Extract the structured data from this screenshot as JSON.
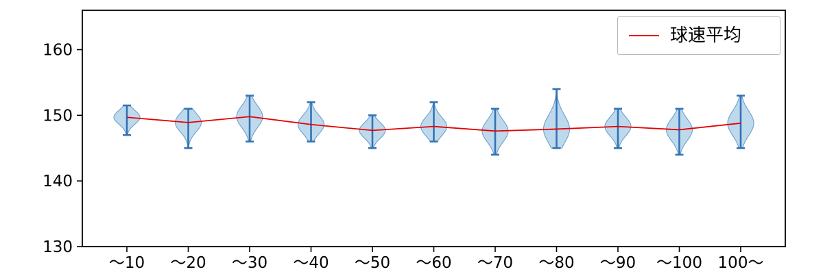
{
  "chart_data": {
    "type": "violin",
    "title": "",
    "xlabel": "",
    "ylabel": "",
    "categories": [
      "〜10",
      "〜20",
      "〜30",
      "〜40",
      "〜50",
      "〜60",
      "〜70",
      "〜80",
      "〜90",
      "〜100",
      "100〜"
    ],
    "violins": [
      {
        "category": "〜10",
        "min": 147.0,
        "max": 151.5,
        "mean": 149.7
      },
      {
        "category": "〜20",
        "min": 145.0,
        "max": 151.0,
        "mean": 148.9
      },
      {
        "category": "〜30",
        "min": 146.0,
        "max": 153.0,
        "mean": 149.8
      },
      {
        "category": "〜40",
        "min": 146.0,
        "max": 152.0,
        "mean": 148.6
      },
      {
        "category": "〜50",
        "min": 145.0,
        "max": 150.0,
        "mean": 147.7
      },
      {
        "category": "〜60",
        "min": 146.0,
        "max": 152.0,
        "mean": 148.3
      },
      {
        "category": "〜70",
        "min": 144.0,
        "max": 151.0,
        "mean": 147.6
      },
      {
        "category": "〜80",
        "min": 145.0,
        "max": 154.0,
        "mean": 147.9
      },
      {
        "category": "〜90",
        "min": 145.0,
        "max": 151.0,
        "mean": 148.3
      },
      {
        "category": "〜100",
        "min": 144.0,
        "max": 151.0,
        "mean": 147.8
      },
      {
        "category": "100〜",
        "min": 145.0,
        "max": 153.0,
        "mean": 148.8
      }
    ],
    "mean_line": {
      "name": "球速平均",
      "values": [
        149.7,
        148.9,
        149.8,
        148.6,
        147.7,
        148.3,
        147.6,
        147.9,
        148.3,
        147.8,
        148.8
      ]
    },
    "ylim": [
      130,
      166
    ],
    "yticks": [
      130,
      140,
      150,
      160
    ],
    "grid": false,
    "legend": {
      "label": "球速平均",
      "position": "upper right"
    },
    "colors": {
      "violin_fill": "#bcd7eb",
      "violin_edge": "#6ba0cc",
      "whisker": "#3173b5",
      "mean_line": "#e60000",
      "axis": "#000000",
      "background": "#ffffff"
    }
  }
}
